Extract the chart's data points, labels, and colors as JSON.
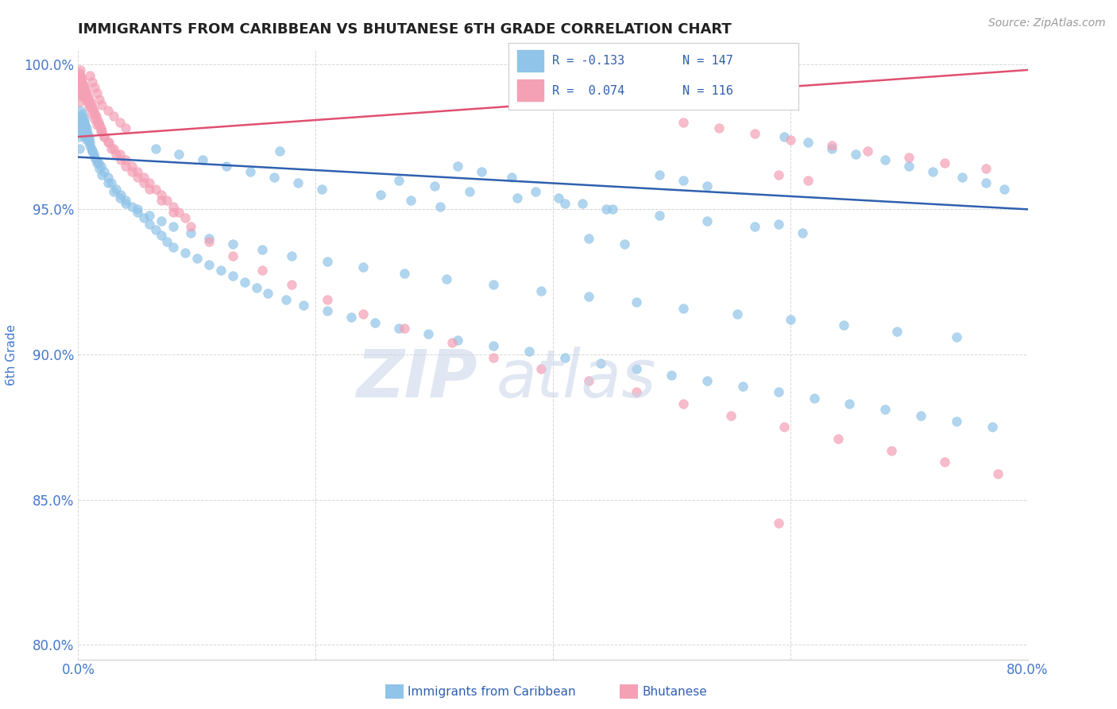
{
  "title": "IMMIGRANTS FROM CARIBBEAN VS BHUTANESE 6TH GRADE CORRELATION CHART",
  "source": "Source: ZipAtlas.com",
  "xlabel_label": "Immigrants from Caribbean",
  "ylabel_label": "6th Grade",
  "xlim": [
    0.0,
    0.8
  ],
  "ylim": [
    0.795,
    1.005
  ],
  "xticks": [
    0.0,
    0.2,
    0.4,
    0.6,
    0.8
  ],
  "yticks": [
    0.8,
    0.85,
    0.9,
    0.95,
    1.0
  ],
  "xtick_labels": [
    "0.0%",
    "",
    "",
    "",
    "80.0%"
  ],
  "ytick_labels": [
    "80.0%",
    "85.0%",
    "90.0%",
    "95.0%",
    "100.0%"
  ],
  "blue_color": "#90c4e8",
  "pink_color": "#f4a0b5",
  "blue_line_color": "#3060b0",
  "pink_line_color": "#e05070",
  "axis_label_color": "#4477cc",
  "tick_color": "#4477cc",
  "grid_color": "#cccccc",
  "background_color": "#ffffff",
  "blue_scatter_x": [
    0.001,
    0.001,
    0.001,
    0.002,
    0.002,
    0.003,
    0.003,
    0.004,
    0.004,
    0.005,
    0.005,
    0.006,
    0.006,
    0.007,
    0.007,
    0.008,
    0.009,
    0.01,
    0.011,
    0.012,
    0.013,
    0.015,
    0.017,
    0.019,
    0.022,
    0.025,
    0.028,
    0.032,
    0.036,
    0.04,
    0.045,
    0.05,
    0.055,
    0.06,
    0.065,
    0.07,
    0.075,
    0.08,
    0.09,
    0.1,
    0.11,
    0.12,
    0.13,
    0.14,
    0.15,
    0.16,
    0.175,
    0.19,
    0.21,
    0.23,
    0.25,
    0.27,
    0.295,
    0.32,
    0.35,
    0.38,
    0.41,
    0.44,
    0.47,
    0.5,
    0.53,
    0.56,
    0.59,
    0.62,
    0.65,
    0.68,
    0.71,
    0.74,
    0.77,
    0.001,
    0.002,
    0.002,
    0.003,
    0.004,
    0.004,
    0.005,
    0.006,
    0.007,
    0.008,
    0.009,
    0.01,
    0.012,
    0.014,
    0.016,
    0.018,
    0.02,
    0.025,
    0.03,
    0.035,
    0.04,
    0.05,
    0.06,
    0.07,
    0.08,
    0.095,
    0.11,
    0.13,
    0.155,
    0.18,
    0.21,
    0.24,
    0.275,
    0.31,
    0.35,
    0.39,
    0.43,
    0.47,
    0.51,
    0.555,
    0.6,
    0.645,
    0.69,
    0.74,
    0.27,
    0.3,
    0.33,
    0.37,
    0.41,
    0.45,
    0.49,
    0.53,
    0.57,
    0.61,
    0.34,
    0.365,
    0.17,
    0.32,
    0.59,
    0.43,
    0.46,
    0.255,
    0.28,
    0.305,
    0.595,
    0.615,
    0.635,
    0.655,
    0.68,
    0.7,
    0.72,
    0.745,
    0.765,
    0.78,
    0.49,
    0.51,
    0.53,
    0.385,
    0.405,
    0.425,
    0.445,
    0.065,
    0.085,
    0.105,
    0.125,
    0.145,
    0.165,
    0.185,
    0.205
  ],
  "blue_scatter_y": [
    0.978,
    0.975,
    0.971,
    0.98,
    0.977,
    0.979,
    0.976,
    0.981,
    0.978,
    0.98,
    0.977,
    0.978,
    0.975,
    0.977,
    0.974,
    0.975,
    0.974,
    0.972,
    0.971,
    0.97,
    0.969,
    0.967,
    0.966,
    0.965,
    0.963,
    0.961,
    0.959,
    0.957,
    0.955,
    0.953,
    0.951,
    0.949,
    0.947,
    0.945,
    0.943,
    0.941,
    0.939,
    0.937,
    0.935,
    0.933,
    0.931,
    0.929,
    0.927,
    0.925,
    0.923,
    0.921,
    0.919,
    0.917,
    0.915,
    0.913,
    0.911,
    0.909,
    0.907,
    0.905,
    0.903,
    0.901,
    0.899,
    0.897,
    0.895,
    0.893,
    0.891,
    0.889,
    0.887,
    0.885,
    0.883,
    0.881,
    0.879,
    0.877,
    0.875,
    0.982,
    0.984,
    0.979,
    0.982,
    0.983,
    0.98,
    0.981,
    0.979,
    0.978,
    0.976,
    0.975,
    0.973,
    0.97,
    0.968,
    0.966,
    0.964,
    0.962,
    0.959,
    0.956,
    0.954,
    0.952,
    0.95,
    0.948,
    0.946,
    0.944,
    0.942,
    0.94,
    0.938,
    0.936,
    0.934,
    0.932,
    0.93,
    0.928,
    0.926,
    0.924,
    0.922,
    0.92,
    0.918,
    0.916,
    0.914,
    0.912,
    0.91,
    0.908,
    0.906,
    0.96,
    0.958,
    0.956,
    0.954,
    0.952,
    0.95,
    0.948,
    0.946,
    0.944,
    0.942,
    0.963,
    0.961,
    0.97,
    0.965,
    0.945,
    0.94,
    0.938,
    0.955,
    0.953,
    0.951,
    0.975,
    0.973,
    0.971,
    0.969,
    0.967,
    0.965,
    0.963,
    0.961,
    0.959,
    0.957,
    0.962,
    0.96,
    0.958,
    0.956,
    0.954,
    0.952,
    0.95,
    0.971,
    0.969,
    0.967,
    0.965,
    0.963,
    0.961,
    0.959,
    0.957
  ],
  "pink_scatter_x": [
    0.001,
    0.001,
    0.001,
    0.002,
    0.002,
    0.003,
    0.003,
    0.004,
    0.004,
    0.005,
    0.005,
    0.006,
    0.007,
    0.008,
    0.009,
    0.01,
    0.012,
    0.014,
    0.016,
    0.019,
    0.022,
    0.026,
    0.03,
    0.035,
    0.04,
    0.045,
    0.05,
    0.055,
    0.06,
    0.065,
    0.07,
    0.075,
    0.08,
    0.085,
    0.09,
    0.01,
    0.012,
    0.014,
    0.016,
    0.018,
    0.02,
    0.025,
    0.03,
    0.035,
    0.04,
    0.001,
    0.002,
    0.003,
    0.003,
    0.004,
    0.005,
    0.006,
    0.007,
    0.008,
    0.002,
    0.002,
    0.003,
    0.004,
    0.005,
    0.006,
    0.007,
    0.008,
    0.009,
    0.01,
    0.011,
    0.012,
    0.013,
    0.014,
    0.015,
    0.016,
    0.017,
    0.018,
    0.019,
    0.02,
    0.022,
    0.025,
    0.028,
    0.032,
    0.036,
    0.04,
    0.045,
    0.05,
    0.055,
    0.06,
    0.07,
    0.08,
    0.095,
    0.11,
    0.13,
    0.155,
    0.18,
    0.21,
    0.24,
    0.275,
    0.315,
    0.35,
    0.39,
    0.43,
    0.47,
    0.51,
    0.55,
    0.595,
    0.64,
    0.685,
    0.73,
    0.775,
    0.51,
    0.54,
    0.57,
    0.6,
    0.635,
    0.665,
    0.7,
    0.73,
    0.765,
    0.59,
    0.615
  ],
  "pink_scatter_y": [
    0.993,
    0.99,
    0.987,
    0.994,
    0.991,
    0.992,
    0.989,
    0.993,
    0.99,
    0.992,
    0.989,
    0.99,
    0.988,
    0.987,
    0.986,
    0.985,
    0.983,
    0.981,
    0.979,
    0.977,
    0.975,
    0.973,
    0.971,
    0.969,
    0.967,
    0.965,
    0.963,
    0.961,
    0.959,
    0.957,
    0.955,
    0.953,
    0.951,
    0.949,
    0.947,
    0.996,
    0.994,
    0.992,
    0.99,
    0.988,
    0.986,
    0.984,
    0.982,
    0.98,
    0.978,
    0.997,
    0.996,
    0.995,
    0.993,
    0.992,
    0.991,
    0.99,
    0.989,
    0.988,
    0.998,
    0.995,
    0.994,
    0.993,
    0.992,
    0.991,
    0.99,
    0.989,
    0.988,
    0.987,
    0.986,
    0.985,
    0.984,
    0.983,
    0.982,
    0.981,
    0.98,
    0.979,
    0.978,
    0.977,
    0.975,
    0.973,
    0.971,
    0.969,
    0.967,
    0.965,
    0.963,
    0.961,
    0.959,
    0.957,
    0.953,
    0.949,
    0.944,
    0.939,
    0.934,
    0.929,
    0.924,
    0.919,
    0.914,
    0.909,
    0.904,
    0.899,
    0.895,
    0.891,
    0.887,
    0.883,
    0.879,
    0.875,
    0.871,
    0.867,
    0.863,
    0.859,
    0.98,
    0.978,
    0.976,
    0.974,
    0.972,
    0.97,
    0.968,
    0.966,
    0.964,
    0.962,
    0.96
  ],
  "pink_outlier_x": [
    0.59
  ],
  "pink_outlier_y": [
    0.842
  ],
  "blue_trend_x": [
    0.0,
    0.8
  ],
  "blue_trend_y": [
    0.968,
    0.95
  ],
  "pink_trend_x": [
    0.0,
    0.8
  ],
  "pink_trend_y": [
    0.975,
    0.998
  ],
  "figsize": [
    14.06,
    8.92
  ],
  "dpi": 100
}
